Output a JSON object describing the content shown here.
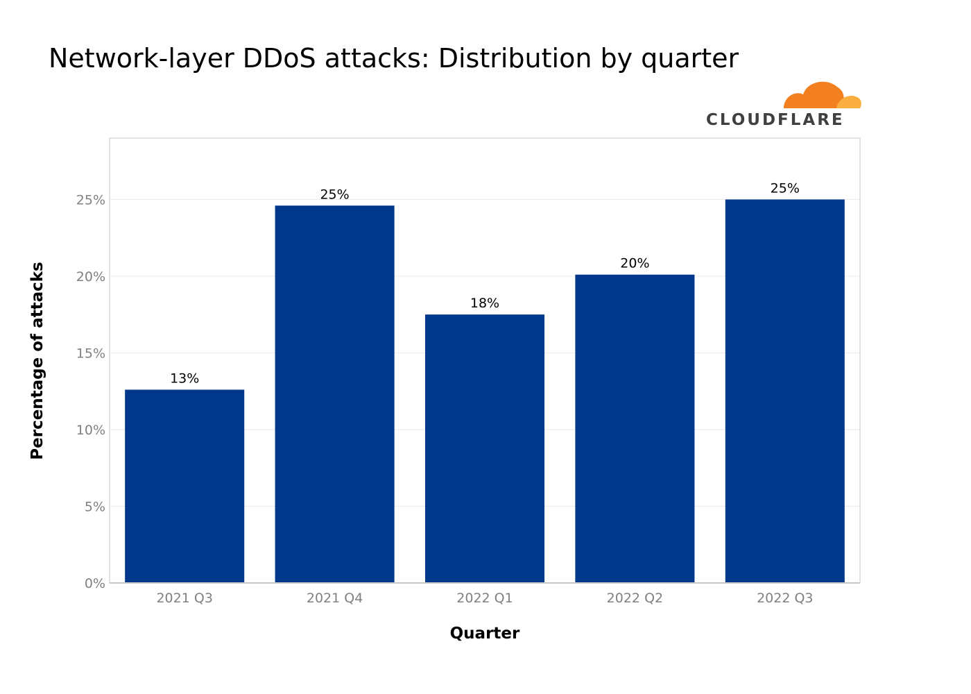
{
  "chart_data": {
    "type": "bar",
    "title": "Network-layer DDoS attacks: Distribution by quarter",
    "xlabel": "Quarter",
    "ylabel": "Percentage of attacks",
    "categories": [
      "2021 Q3",
      "2021 Q4",
      "2022 Q1",
      "2022 Q2",
      "2022 Q3"
    ],
    "values": [
      12.6,
      24.6,
      17.5,
      20.1,
      25.0
    ],
    "data_labels": [
      "13%",
      "25%",
      "18%",
      "20%",
      "25%"
    ],
    "y_ticks": [
      0,
      5,
      10,
      15,
      20,
      25
    ],
    "y_tick_labels": [
      "0%",
      "5%",
      "10%",
      "15%",
      "20%",
      "25%"
    ],
    "ylim": [
      0,
      29
    ],
    "grid": true,
    "bar_color": "#00388B"
  },
  "brand": {
    "logo_text": "CLOUDFLARE",
    "logo_icon": "cloudflare-cloud-icon",
    "colors": {
      "orange": "#F38020",
      "light_orange": "#FAAE40"
    }
  }
}
